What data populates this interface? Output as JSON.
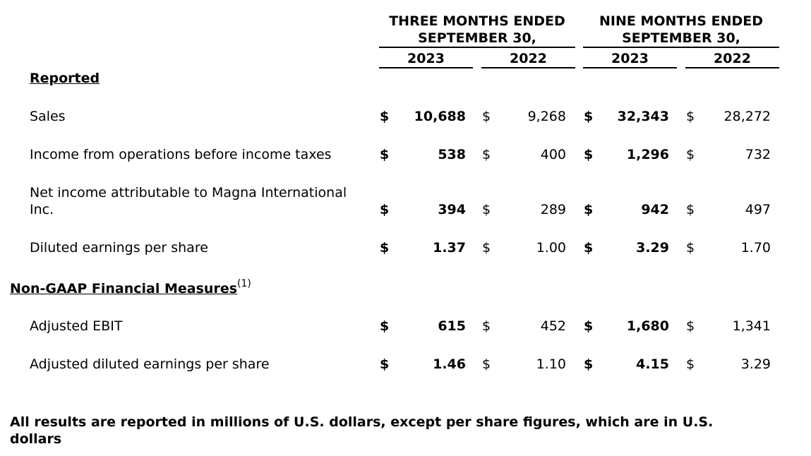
{
  "header": {
    "group1_line1": "THREE MONTHS ENDED",
    "group1_line2": "SEPTEMBER 30,",
    "group2_line1": "NINE MONTHS ENDED",
    "group2_line2": "SEPTEMBER 30,",
    "years": [
      "2023",
      "2022",
      "2023",
      "2022"
    ]
  },
  "sections": {
    "reported": "Reported",
    "non_gaap": "Non-GAAP Financial Measures",
    "non_gaap_footnote": "(1)"
  },
  "currency_symbol": "$",
  "rows": [
    {
      "label": "Sales",
      "values": [
        "10,688",
        "9,268",
        "32,343",
        "28,272"
      ]
    },
    {
      "label": "Income from operations before income taxes",
      "values": [
        "538",
        "400",
        "1,296",
        "732"
      ]
    },
    {
      "label_line1": "Net income attributable to Magna International",
      "label_line2": "Inc.",
      "values": [
        "394",
        "289",
        "942",
        "497"
      ]
    },
    {
      "label": "Diluted earnings per share",
      "values": [
        "1.37",
        "1.00",
        "3.29",
        "1.70"
      ]
    },
    {
      "label": "Adjusted EBIT",
      "values": [
        "615",
        "452",
        "1,680",
        "1,341"
      ]
    },
    {
      "label": "Adjusted diluted earnings per share",
      "values": [
        "1.46",
        "1.10",
        "4.15",
        "3.29"
      ]
    }
  ],
  "footer": {
    "line1": "All results are reported in millions of U.S. dollars, except per share figures, which are in U.S.",
    "line2": "dollars"
  }
}
